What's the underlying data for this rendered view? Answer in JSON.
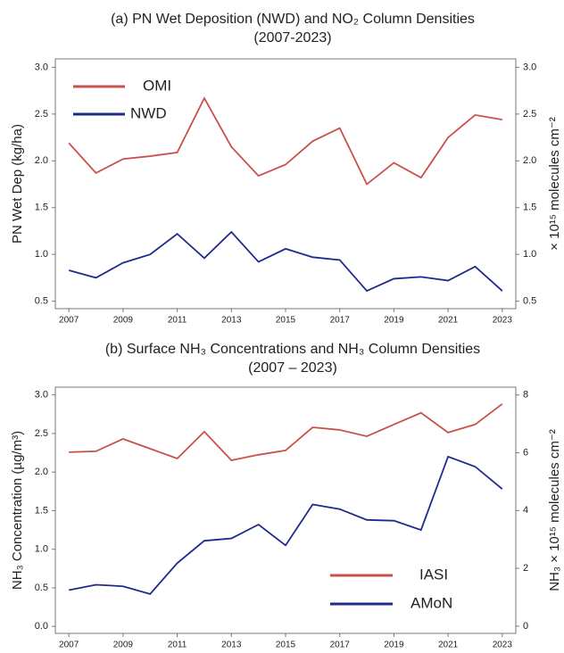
{
  "chart_data": [
    {
      "type": "line",
      "title": [
        "(a) PN Wet Deposition (NWD) and NO₂ Column Densities",
        "(2007-2023)"
      ],
      "ylabel": "PN Wet Dep (kg/ha)",
      "y2label": "× 10¹⁵ molecules cm⁻²",
      "x": [
        2007,
        2008,
        2009,
        2010,
        2011,
        2012,
        2013,
        2014,
        2015,
        2016,
        2017,
        2018,
        2019,
        2020,
        2021,
        2022,
        2023
      ],
      "xlim": [
        2006.5,
        2023.5
      ],
      "xticks": [
        2007,
        2009,
        2011,
        2013,
        2015,
        2017,
        2019,
        2021,
        2023
      ],
      "ylim": [
        0.42,
        3.09
      ],
      "yticks": [
        0.5,
        {
          "value": 1,
          "label": "1.0"
        },
        1.5,
        {
          "value": 2,
          "label": "2.0"
        },
        2.5,
        {
          "value": 3,
          "label": "3.0"
        }
      ],
      "y2lim": [
        0.42,
        3.09
      ],
      "y2ticks": [
        0.5,
        {
          "value": 1,
          "label": "1.0"
        },
        1.5,
        {
          "value": 2,
          "label": "2.0"
        },
        2.5,
        {
          "value": 3,
          "label": "3.0"
        }
      ],
      "legend": "upper left",
      "series": [
        {
          "name": "OMI",
          "color": "#c8514b",
          "axis": "y2",
          "values": [
            2.19,
            1.87,
            2.02,
            2.05,
            2.09,
            2.67,
            2.15,
            1.84,
            1.96,
            2.21,
            2.35,
            1.75,
            1.98,
            1.82,
            2.25,
            2.49,
            2.44
          ]
        },
        {
          "name": "NWD",
          "color": "#1f2a8c",
          "axis": "y",
          "values": [
            0.83,
            0.75,
            0.91,
            1.0,
            1.22,
            0.96,
            1.24,
            0.92,
            1.06,
            0.97,
            0.94,
            0.61,
            0.74,
            0.76,
            0.72,
            0.87,
            0.61
          ]
        }
      ]
    },
    {
      "type": "line",
      "title": [
        "(b) Surface NH₃ Concentrations and NH₃ Column Densities",
        "(2007 – 2023)"
      ],
      "ylabel": "NH₃ Concentration (µg/m³)",
      "y2label": "NH₃ × 10¹⁵ molecules cm⁻²",
      "x": [
        2007,
        2008,
        2009,
        2010,
        2011,
        2012,
        2013,
        2014,
        2015,
        2016,
        2017,
        2018,
        2019,
        2020,
        2021,
        2022,
        2023
      ],
      "xlim": [
        2006.5,
        2023.5
      ],
      "xticks": [
        2007,
        2009,
        2011,
        2013,
        2015,
        2017,
        2019,
        2021,
        2023
      ],
      "ylim": [
        -0.09,
        3.1
      ],
      "yticks": [
        {
          "value": 0,
          "label": "0.0"
        },
        0.5,
        {
          "value": 1,
          "label": "1.0"
        },
        1.5,
        {
          "value": 2,
          "label": "2.0"
        },
        2.5,
        {
          "value": 3,
          "label": "3.0"
        }
      ],
      "y2lim": [
        -0.25,
        8.27
      ],
      "y2ticks": [
        0,
        2,
        4,
        6,
        8
      ],
      "legend": "lower right",
      "series": [
        {
          "name": "IASI",
          "color": "#c8514b",
          "axis": "y2",
          "values": [
            6.02,
            6.05,
            6.48,
            6.14,
            5.8,
            6.73,
            5.74,
            5.93,
            6.08,
            6.88,
            6.79,
            6.57,
            6.98,
            7.38,
            6.7,
            6.98,
            7.69
          ]
        },
        {
          "name": "AMoN",
          "color": "#1f2a8c",
          "axis": "y",
          "values": [
            0.47,
            0.54,
            0.52,
            0.42,
            0.82,
            1.11,
            1.14,
            1.32,
            1.05,
            1.58,
            1.52,
            1.38,
            1.37,
            1.25,
            2.2,
            2.07,
            1.78
          ]
        }
      ]
    }
  ]
}
